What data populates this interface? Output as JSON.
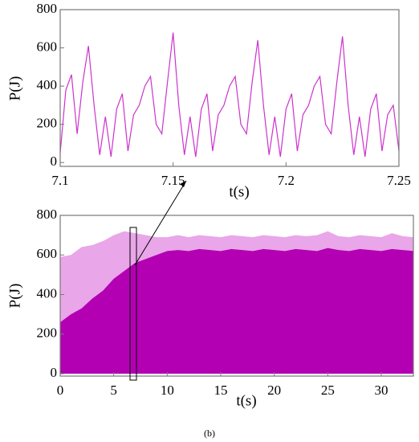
{
  "chart_data": [
    {
      "type": "line",
      "ylabel": "P(J)",
      "xlabel": "t(s)",
      "color": "#cc33cc",
      "xlim": [
        7.1,
        7.25
      ],
      "xticks": [
        7.1,
        7.15,
        7.2,
        7.25
      ],
      "ylim": [
        -20,
        800
      ],
      "yticks": [
        0,
        200,
        400,
        600,
        800
      ],
      "x": [
        7.1,
        7.1025,
        7.105,
        7.1075,
        7.11,
        7.1125,
        7.115,
        7.1175,
        7.12,
        7.1225,
        7.125,
        7.1275,
        7.13,
        7.1325,
        7.135,
        7.1375,
        7.14,
        7.1425,
        7.145,
        7.1475,
        7.15,
        7.1525,
        7.155,
        7.1575,
        7.16,
        7.1625,
        7.165,
        7.1675,
        7.17,
        7.1725,
        7.175,
        7.1775,
        7.18,
        7.1825,
        7.185,
        7.1875,
        7.19,
        7.1925,
        7.195,
        7.1975,
        7.2,
        7.2025,
        7.205,
        7.2075,
        7.21,
        7.2125,
        7.215,
        7.2175,
        7.22,
        7.2225,
        7.225,
        7.2275,
        7.23,
        7.2325,
        7.235,
        7.2375,
        7.24,
        7.2425,
        7.245,
        7.2475,
        7.25
      ],
      "values": [
        50,
        380,
        460,
        150,
        420,
        610,
        300,
        40,
        240,
        30,
        280,
        360,
        60,
        250,
        300,
        400,
        450,
        200,
        150,
        420,
        680,
        300,
        40,
        240,
        30,
        280,
        360,
        60,
        250,
        300,
        400,
        450,
        200,
        150,
        420,
        640,
        300,
        40,
        240,
        30,
        280,
        360,
        60,
        250,
        300,
        400,
        450,
        200,
        150,
        420,
        660,
        300,
        40,
        240,
        30,
        280,
        360,
        60,
        250,
        300,
        60
      ]
    },
    {
      "type": "band",
      "ylabel": "P(J)",
      "xlabel": "t(s)",
      "color": "#b300b3",
      "upper_color": "#e9a6e9",
      "xlim": [
        0,
        33
      ],
      "xticks": [
        0,
        5,
        10,
        15,
        20,
        25,
        30
      ],
      "ylim": [
        -12,
        800
      ],
      "yticks": [
        0,
        200,
        400,
        600,
        800
      ],
      "x": [
        0,
        1,
        2,
        3,
        4,
        5,
        6,
        7,
        8,
        9,
        10,
        11,
        12,
        13,
        14,
        15,
        16,
        17,
        18,
        19,
        20,
        21,
        22,
        23,
        24,
        25,
        26,
        27,
        28,
        29,
        30,
        31,
        32,
        33
      ],
      "core": [
        260,
        300,
        330,
        380,
        420,
        480,
        520,
        560,
        580,
        600,
        620,
        625,
        620,
        630,
        625,
        620,
        630,
        625,
        620,
        630,
        625,
        620,
        630,
        625,
        620,
        635,
        625,
        620,
        630,
        625,
        620,
        630,
        625,
        620
      ],
      "upper": [
        590,
        600,
        640,
        650,
        670,
        700,
        720,
        710,
        700,
        690,
        690,
        700,
        690,
        700,
        695,
        690,
        700,
        695,
        690,
        700,
        695,
        690,
        700,
        695,
        700,
        720,
        695,
        690,
        700,
        695,
        690,
        710,
        695,
        690
      ]
    }
  ],
  "caption": "(b)"
}
